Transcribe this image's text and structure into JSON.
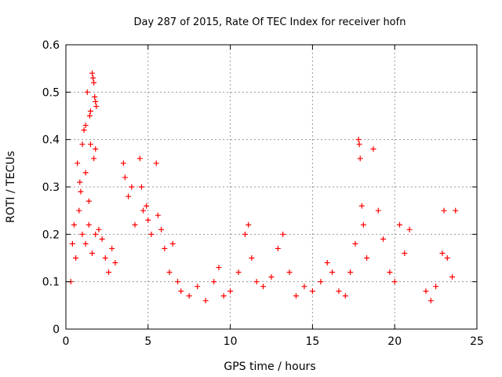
{
  "chart_data": {
    "type": "scatter",
    "title": "Day 287 of 2015, Rate Of TEC Index for receiver hofn",
    "xlabel": "GPS time / hours",
    "ylabel": "ROTI / TECUs",
    "xlim": [
      0,
      25
    ],
    "ylim": [
      0,
      0.6
    ],
    "xticks": [
      0,
      5,
      10,
      15,
      20,
      25
    ],
    "xtick_labels": [
      "0",
      "5",
      "10",
      "15",
      "20",
      "25"
    ],
    "yticks": [
      0,
      0.1,
      0.2,
      0.3,
      0.4,
      0.5,
      0.6
    ],
    "ytick_labels": [
      "0",
      "0.1",
      "0.2",
      "0.3",
      "0.4",
      "0.5",
      "0.6"
    ],
    "grid": true,
    "marker": "+",
    "marker_color": "#ff0000",
    "series": [
      {
        "name": "ROTI",
        "points": [
          [
            0.3,
            0.1
          ],
          [
            0.5,
            0.22
          ],
          [
            0.7,
            0.35
          ],
          [
            0.85,
            0.31
          ],
          [
            1.0,
            0.39
          ],
          [
            1.1,
            0.42
          ],
          [
            1.2,
            0.43
          ],
          [
            1.3,
            0.5
          ],
          [
            1.45,
            0.45
          ],
          [
            1.5,
            0.46
          ],
          [
            1.6,
            0.54
          ],
          [
            1.65,
            0.53
          ],
          [
            1.7,
            0.52
          ],
          [
            1.75,
            0.49
          ],
          [
            1.8,
            0.48
          ],
          [
            1.85,
            0.47
          ],
          [
            1.5,
            0.39
          ],
          [
            1.7,
            0.36
          ],
          [
            1.8,
            0.38
          ],
          [
            1.2,
            0.33
          ],
          [
            0.9,
            0.29
          ],
          [
            1.4,
            0.27
          ],
          [
            0.4,
            0.18
          ],
          [
            0.6,
            0.15
          ],
          [
            0.8,
            0.25
          ],
          [
            1.0,
            0.2
          ],
          [
            1.2,
            0.18
          ],
          [
            1.4,
            0.22
          ],
          [
            1.6,
            0.16
          ],
          [
            1.8,
            0.2
          ],
          [
            2.0,
            0.21
          ],
          [
            2.2,
            0.19
          ],
          [
            2.4,
            0.15
          ],
          [
            2.6,
            0.12
          ],
          [
            2.8,
            0.17
          ],
          [
            3.0,
            0.14
          ],
          [
            3.5,
            0.35
          ],
          [
            3.6,
            0.32
          ],
          [
            3.8,
            0.28
          ],
          [
            4.0,
            0.3
          ],
          [
            4.2,
            0.22
          ],
          [
            4.5,
            0.36
          ],
          [
            4.6,
            0.3
          ],
          [
            4.7,
            0.25
          ],
          [
            4.9,
            0.26
          ],
          [
            5.0,
            0.23
          ],
          [
            5.2,
            0.2
          ],
          [
            5.5,
            0.35
          ],
          [
            5.6,
            0.24
          ],
          [
            5.8,
            0.21
          ],
          [
            6.0,
            0.17
          ],
          [
            6.3,
            0.12
          ],
          [
            6.5,
            0.18
          ],
          [
            6.8,
            0.1
          ],
          [
            7.0,
            0.08
          ],
          [
            7.5,
            0.07
          ],
          [
            8.0,
            0.09
          ],
          [
            8.5,
            0.06
          ],
          [
            9.0,
            0.1
          ],
          [
            9.3,
            0.13
          ],
          [
            9.6,
            0.07
          ],
          [
            10.0,
            0.08
          ],
          [
            10.5,
            0.12
          ],
          [
            10.9,
            0.2
          ],
          [
            11.1,
            0.22
          ],
          [
            11.3,
            0.15
          ],
          [
            11.6,
            0.1
          ],
          [
            12.0,
            0.09
          ],
          [
            12.5,
            0.11
          ],
          [
            12.9,
            0.17
          ],
          [
            13.2,
            0.2
          ],
          [
            13.6,
            0.12
          ],
          [
            14.0,
            0.07
          ],
          [
            14.5,
            0.09
          ],
          [
            15.0,
            0.08
          ],
          [
            15.5,
            0.1
          ],
          [
            15.9,
            0.14
          ],
          [
            16.2,
            0.12
          ],
          [
            16.6,
            0.08
          ],
          [
            17.0,
            0.07
          ],
          [
            17.3,
            0.12
          ],
          [
            17.6,
            0.18
          ],
          [
            17.8,
            0.4
          ],
          [
            17.85,
            0.39
          ],
          [
            17.9,
            0.36
          ],
          [
            18.0,
            0.26
          ],
          [
            18.1,
            0.22
          ],
          [
            18.3,
            0.15
          ],
          [
            18.7,
            0.38
          ],
          [
            19.0,
            0.25
          ],
          [
            19.3,
            0.19
          ],
          [
            19.7,
            0.12
          ],
          [
            20.0,
            0.1
          ],
          [
            20.3,
            0.22
          ],
          [
            20.6,
            0.16
          ],
          [
            20.9,
            0.21
          ],
          [
            21.9,
            0.08
          ],
          [
            22.2,
            0.06
          ],
          [
            22.5,
            0.09
          ],
          [
            22.9,
            0.16
          ],
          [
            23.0,
            0.25
          ],
          [
            23.2,
            0.15
          ],
          [
            23.5,
            0.11
          ],
          [
            23.7,
            0.25
          ]
        ]
      }
    ]
  }
}
